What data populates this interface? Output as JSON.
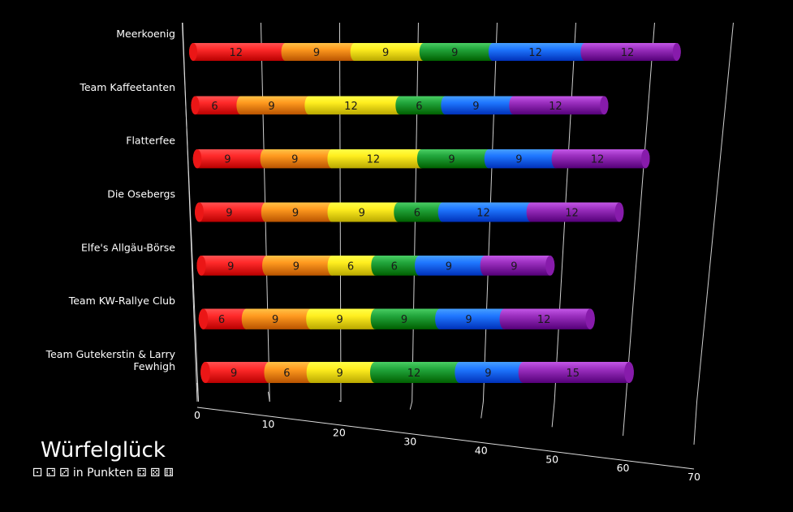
{
  "chart_data": {
    "type": "bar",
    "orientation": "horizontal",
    "stacked": true,
    "style": "3d-cylinder",
    "title": "Würfelglück",
    "subtitle": "⚀ ⚁ ⚂ in Punkten ⚃ ⚄ ⚅",
    "categories": [
      "Meerkoenig",
      "Team Kaffeetanten",
      "Flatterfee",
      "Die Osebergs",
      "Elfe's Allgäu-Börse",
      "Team KW-Rallye Club",
      "Team Gutekerstin & Larry Fewhigh"
    ],
    "series": [
      {
        "color": "#ff2a2a",
        "values": [
          12,
          6,
          9,
          9,
          9,
          6,
          9
        ]
      },
      {
        "color": "#ff9a1f",
        "values": [
          9,
          9,
          9,
          9,
          9,
          9,
          6
        ]
      },
      {
        "color": "#ffee1f",
        "values": [
          9,
          12,
          12,
          9,
          6,
          9,
          9
        ]
      },
      {
        "color": "#22a63c",
        "values": [
          9,
          6,
          9,
          6,
          6,
          9,
          12
        ]
      },
      {
        "color": "#1f77ff",
        "values": [
          12,
          9,
          9,
          12,
          9,
          9,
          9
        ]
      },
      {
        "color": "#9b2fbf",
        "values": [
          12,
          12,
          12,
          12,
          9,
          12,
          15
        ]
      }
    ],
    "xlim": [
      0,
      70
    ],
    "xticks": [
      0,
      10,
      20,
      30,
      40,
      50,
      60,
      70
    ],
    "grid": true,
    "background": "#000000"
  }
}
